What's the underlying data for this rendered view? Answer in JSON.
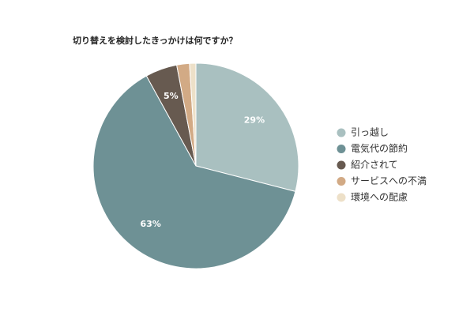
{
  "chart_data": {
    "type": "pie",
    "title": "切り替えを検討したきっかけは何ですか？",
    "categories": [
      "引っ越し",
      "電気代の節約",
      "紹介されて",
      "サービスへの不満",
      "環境への配慮"
    ],
    "values": [
      29,
      63,
      5,
      2,
      1
    ],
    "value_labels": [
      "29%",
      "63%",
      "5%",
      null,
      null
    ],
    "colors": [
      "#a9c0c0",
      "#6e9195",
      "#675a50",
      "#d2aa85",
      "#ede0c8"
    ],
    "legend": "right"
  }
}
